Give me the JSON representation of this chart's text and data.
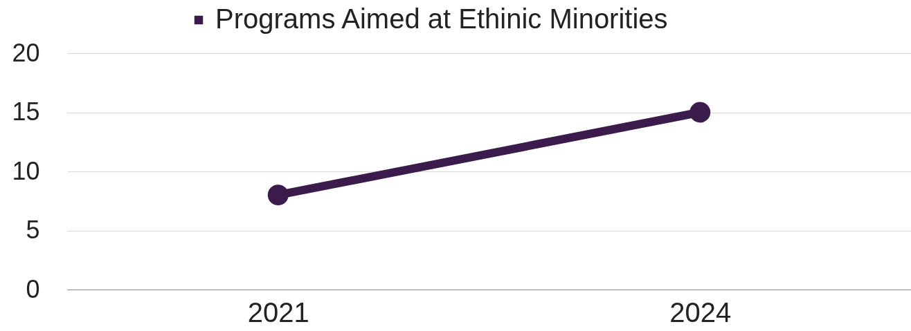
{
  "chart_data": {
    "type": "line",
    "categories": [
      "2021",
      "2024"
    ],
    "series": [
      {
        "name": "Programs Aimed at Ethinic Minorities",
        "color": "#3b1a4c",
        "values": [
          8,
          15
        ]
      }
    ],
    "ylim": [
      0,
      20
    ],
    "yticks": [
      0,
      5,
      10,
      15,
      20
    ],
    "grid": "y",
    "legend": "top",
    "marker": "circle",
    "line_style": "solid"
  }
}
